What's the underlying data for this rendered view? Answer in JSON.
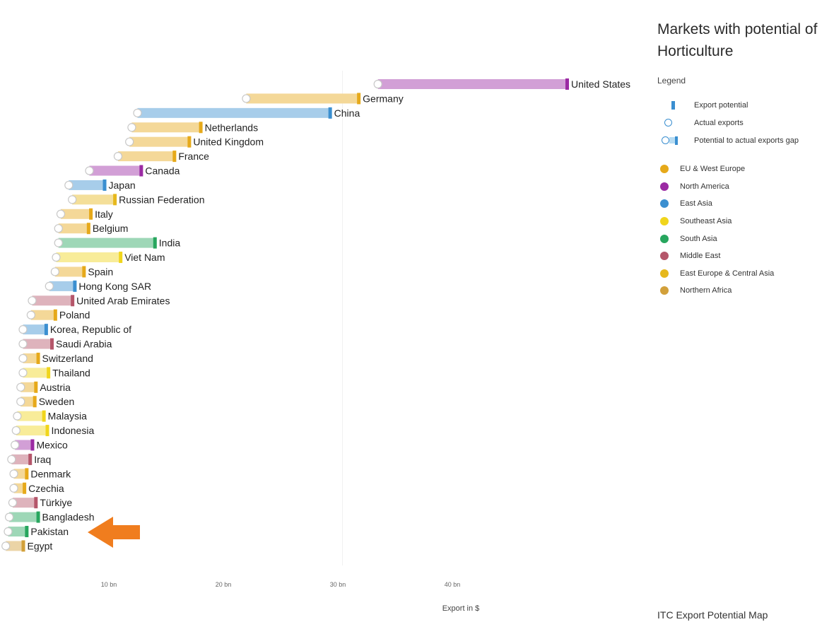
{
  "panel": {
    "title": "Markets with potential of Horticulture",
    "legend_heading": "Legend",
    "legend_symbols": [
      {
        "label": "Export potential",
        "icon": "potential-bar-icon"
      },
      {
        "label": "Actual exports",
        "icon": "actual-circle-icon"
      },
      {
        "label": "Potential to actual exports gap",
        "icon": "gap-bar-icon"
      }
    ],
    "regions": [
      {
        "label": "EU & West Europe",
        "color": "#e6a91a"
      },
      {
        "label": "North America",
        "color": "#9b2aa3"
      },
      {
        "label": "East Asia",
        "color": "#3b8fd0"
      },
      {
        "label": "Southeast Asia",
        "color": "#f0d51c"
      },
      {
        "label": "South Asia",
        "color": "#27a65e"
      },
      {
        "label": "Middle East",
        "color": "#b5566a"
      },
      {
        "label": "East Europe & Central Asia",
        "color": "#e6b81c"
      },
      {
        "label": "Northern Africa",
        "color": "#d2a03a"
      }
    ],
    "footer": "ITC Export Potential Map"
  },
  "annotation": {
    "arrow_points_to": "Pakistan",
    "arrow_color": "#f07d1e"
  },
  "chart_data": {
    "type": "bar",
    "subtype": "dumbbell-gap",
    "xlabel": "Export in $",
    "x_ticks": [
      "10 bn",
      "20 bn",
      "30 bn",
      "40 bn"
    ],
    "x_tick_values": [
      10,
      20,
      30,
      40
    ],
    "xlim": [
      0,
      57
    ],
    "grid": false,
    "units": "bn USD",
    "series": [
      {
        "name": "Actual exports",
        "role": "bar-start"
      },
      {
        "name": "Export potential",
        "role": "bar-end"
      }
    ],
    "rows": [
      {
        "country": "United States",
        "region": "North America",
        "actual": 33.5,
        "potential": 50.0
      },
      {
        "country": "Germany",
        "region": "EU & West Europe",
        "actual": 22.0,
        "potential": 31.8
      },
      {
        "country": "China",
        "region": "East Asia",
        "actual": 12.5,
        "potential": 29.3
      },
      {
        "country": "Netherlands",
        "region": "EU & West Europe",
        "actual": 12.0,
        "potential": 18.0
      },
      {
        "country": "United Kingdom",
        "region": "EU & West Europe",
        "actual": 11.8,
        "potential": 17.0
      },
      {
        "country": "France",
        "region": "EU & West Europe",
        "actual": 10.8,
        "potential": 15.7
      },
      {
        "country": "Canada",
        "region": "North America",
        "actual": 8.3,
        "potential": 12.8
      },
      {
        "country": "Japan",
        "region": "East Asia",
        "actual": 6.5,
        "potential": 9.6
      },
      {
        "country": "Russian Federation",
        "region": "East Europe & Central Asia",
        "actual": 6.8,
        "potential": 10.5
      },
      {
        "country": "Italy",
        "region": "EU & West Europe",
        "actual": 5.8,
        "potential": 8.4
      },
      {
        "country": "Belgium",
        "region": "EU & West Europe",
        "actual": 5.6,
        "potential": 8.2
      },
      {
        "country": "India",
        "region": "South Asia",
        "actual": 5.6,
        "potential": 14.0
      },
      {
        "country": "Viet Nam",
        "region": "Southeast Asia",
        "actual": 5.4,
        "potential": 11.0
      },
      {
        "country": "Spain",
        "region": "EU & West Europe",
        "actual": 5.3,
        "potential": 7.8
      },
      {
        "country": "Hong Kong SAR",
        "region": "East Asia",
        "actual": 4.8,
        "potential": 7.0
      },
      {
        "country": "United Arab Emirates",
        "region": "Middle East",
        "actual": 3.3,
        "potential": 6.8
      },
      {
        "country": "Poland",
        "region": "EU & West Europe",
        "actual": 3.2,
        "potential": 5.3
      },
      {
        "country": "Korea, Republic of",
        "region": "East Asia",
        "actual": 2.5,
        "potential": 4.5
      },
      {
        "country": "Saudi Arabia",
        "region": "Middle East",
        "actual": 2.5,
        "potential": 5.0
      },
      {
        "country": "Switzerland",
        "region": "EU & West Europe",
        "actual": 2.5,
        "potential": 3.8
      },
      {
        "country": "Thailand",
        "region": "Southeast Asia",
        "actual": 2.5,
        "potential": 4.7
      },
      {
        "country": "Austria",
        "region": "EU & West Europe",
        "actual": 2.3,
        "potential": 3.6
      },
      {
        "country": "Sweden",
        "region": "EU & West Europe",
        "actual": 2.3,
        "potential": 3.5
      },
      {
        "country": "Malaysia",
        "region": "Southeast Asia",
        "actual": 2.0,
        "potential": 4.3
      },
      {
        "country": "Indonesia",
        "region": "Southeast Asia",
        "actual": 1.9,
        "potential": 4.6
      },
      {
        "country": "Mexico",
        "region": "North America",
        "actual": 1.8,
        "potential": 3.3
      },
      {
        "country": "Iraq",
        "region": "Middle East",
        "actual": 1.5,
        "potential": 3.1
      },
      {
        "country": "Denmark",
        "region": "EU & West Europe",
        "actual": 1.7,
        "potential": 2.8
      },
      {
        "country": "Czechia",
        "region": "EU & West Europe",
        "actual": 1.7,
        "potential": 2.6
      },
      {
        "country": "Türkiye",
        "region": "Middle East",
        "actual": 1.6,
        "potential": 3.6
      },
      {
        "country": "Bangladesh",
        "region": "South Asia",
        "actual": 1.3,
        "potential": 3.8
      },
      {
        "country": "Pakistan",
        "region": "South Asia",
        "actual": 1.2,
        "potential": 2.8
      },
      {
        "country": "Egypt",
        "region": "Northern Africa",
        "actual": 1.0,
        "potential": 2.5
      }
    ]
  }
}
